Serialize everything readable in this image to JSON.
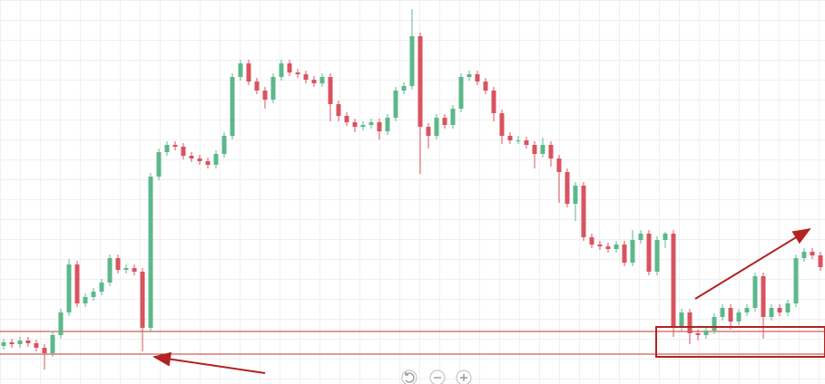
{
  "chart_data": {
    "type": "candlestick",
    "up_color": "#5cb88a",
    "down_color": "#d9535f",
    "level_color": "#c0392b",
    "ylim": [
      0,
      424
    ],
    "levels": [
      58,
      33
    ],
    "series": [
      {
        "values": [
          [
            42,
            50,
            38,
            46
          ],
          [
            46,
            50,
            40,
            44
          ],
          [
            44,
            52,
            40,
            48
          ],
          [
            48,
            52,
            41,
            45
          ],
          [
            45,
            49,
            36,
            40
          ],
          [
            40,
            44,
            16,
            34
          ],
          [
            34,
            58,
            30,
            54
          ],
          [
            54,
            83,
            50,
            79
          ],
          [
            79,
            138,
            75,
            132
          ],
          [
            132,
            136,
            85,
            89
          ],
          [
            89,
            100,
            85,
            96
          ],
          [
            96,
            106,
            92,
            102
          ],
          [
            102,
            116,
            98,
            112
          ],
          [
            112,
            143,
            108,
            139
          ],
          [
            139,
            143,
            122,
            126
          ],
          [
            126,
            132,
            122,
            128
          ],
          [
            128,
            132,
            120,
            124
          ],
          [
            124,
            128,
            36,
            62
          ],
          [
            62,
            233,
            58,
            229
          ],
          [
            229,
            260,
            225,
            256
          ],
          [
            256,
            268,
            252,
            264
          ],
          [
            264,
            268,
            258,
            262
          ],
          [
            262,
            266,
            248,
            252
          ],
          [
            252,
            256,
            245,
            249
          ],
          [
            249,
            253,
            242,
            246
          ],
          [
            246,
            250,
            238,
            242
          ],
          [
            242,
            258,
            238,
            254
          ],
          [
            254,
            278,
            250,
            274
          ],
          [
            274,
            343,
            270,
            339
          ],
          [
            339,
            358,
            335,
            354
          ],
          [
            354,
            358,
            330,
            334
          ],
          [
            334,
            338,
            320,
            324
          ],
          [
            324,
            328,
            304,
            314
          ],
          [
            314,
            343,
            310,
            339
          ],
          [
            339,
            358,
            335,
            354
          ],
          [
            354,
            358,
            340,
            344
          ],
          [
            344,
            348,
            338,
            342
          ],
          [
            342,
            346,
            332,
            336
          ],
          [
            336,
            340,
            328,
            332
          ],
          [
            332,
            343,
            328,
            339
          ],
          [
            339,
            343,
            290,
            309
          ],
          [
            309,
            313,
            290,
            296
          ],
          [
            296,
            300,
            285,
            289
          ],
          [
            289,
            293,
            278,
            284
          ],
          [
            284,
            290,
            280,
            286
          ],
          [
            286,
            293,
            282,
            289
          ],
          [
            289,
            293,
            270,
            279
          ],
          [
            279,
            298,
            275,
            294
          ],
          [
            294,
            328,
            290,
            324
          ],
          [
            324,
            333,
            320,
            329
          ],
          [
            329,
            414,
            325,
            384
          ],
          [
            384,
            388,
            232,
            284
          ],
          [
            284,
            288,
            260,
            274
          ],
          [
            274,
            298,
            270,
            294
          ],
          [
            294,
            298,
            282,
            286
          ],
          [
            286,
            308,
            282,
            304
          ],
          [
            304,
            343,
            300,
            339
          ],
          [
            339,
            346,
            335,
            342
          ],
          [
            342,
            346,
            330,
            334
          ],
          [
            334,
            338,
            320,
            324
          ],
          [
            324,
            328,
            290,
            299
          ],
          [
            299,
            303,
            265,
            274
          ],
          [
            274,
            278,
            265,
            269
          ],
          [
            269,
            274,
            265,
            269
          ],
          [
            269,
            273,
            260,
            264
          ],
          [
            264,
            268,
            238,
            254
          ],
          [
            254,
            272,
            250,
            264
          ],
          [
            264,
            268,
            240,
            249
          ],
          [
            249,
            253,
            200,
            234
          ],
          [
            234,
            238,
            195,
            199
          ],
          [
            199,
            223,
            180,
            219
          ],
          [
            219,
            223,
            158,
            162
          ],
          [
            162,
            166,
            150,
            154
          ],
          [
            154,
            158,
            148,
            152
          ],
          [
            152,
            156,
            145,
            149
          ],
          [
            149,
            158,
            145,
            154
          ],
          [
            154,
            158,
            130,
            134
          ],
          [
            134,
            170,
            130,
            159
          ],
          [
            159,
            170,
            155,
            166
          ],
          [
            166,
            170,
            120,
            124
          ],
          [
            124,
            163,
            120,
            159
          ],
          [
            159,
            168,
            150,
            166
          ],
          [
            166,
            170,
            52,
            64
          ],
          [
            64,
            83,
            58,
            79
          ],
          [
            79,
            83,
            44,
            56
          ],
          [
            56,
            60,
            48,
            54
          ],
          [
            54,
            63,
            50,
            59
          ],
          [
            59,
            78,
            55,
            74
          ],
          [
            74,
            88,
            70,
            84
          ],
          [
            84,
            88,
            60,
            69
          ],
          [
            69,
            83,
            65,
            79
          ],
          [
            79,
            88,
            75,
            84
          ],
          [
            84,
            123,
            80,
            119
          ],
          [
            119,
            123,
            50,
            74
          ],
          [
            74,
            88,
            70,
            84
          ],
          [
            84,
            88,
            75,
            79
          ],
          [
            79,
            93,
            75,
            89
          ],
          [
            89,
            143,
            85,
            139
          ],
          [
            139,
            150,
            135,
            146
          ],
          [
            146,
            150,
            138,
            142
          ],
          [
            142,
            146,
            125,
            129
          ]
        ]
      }
    ]
  }
}
